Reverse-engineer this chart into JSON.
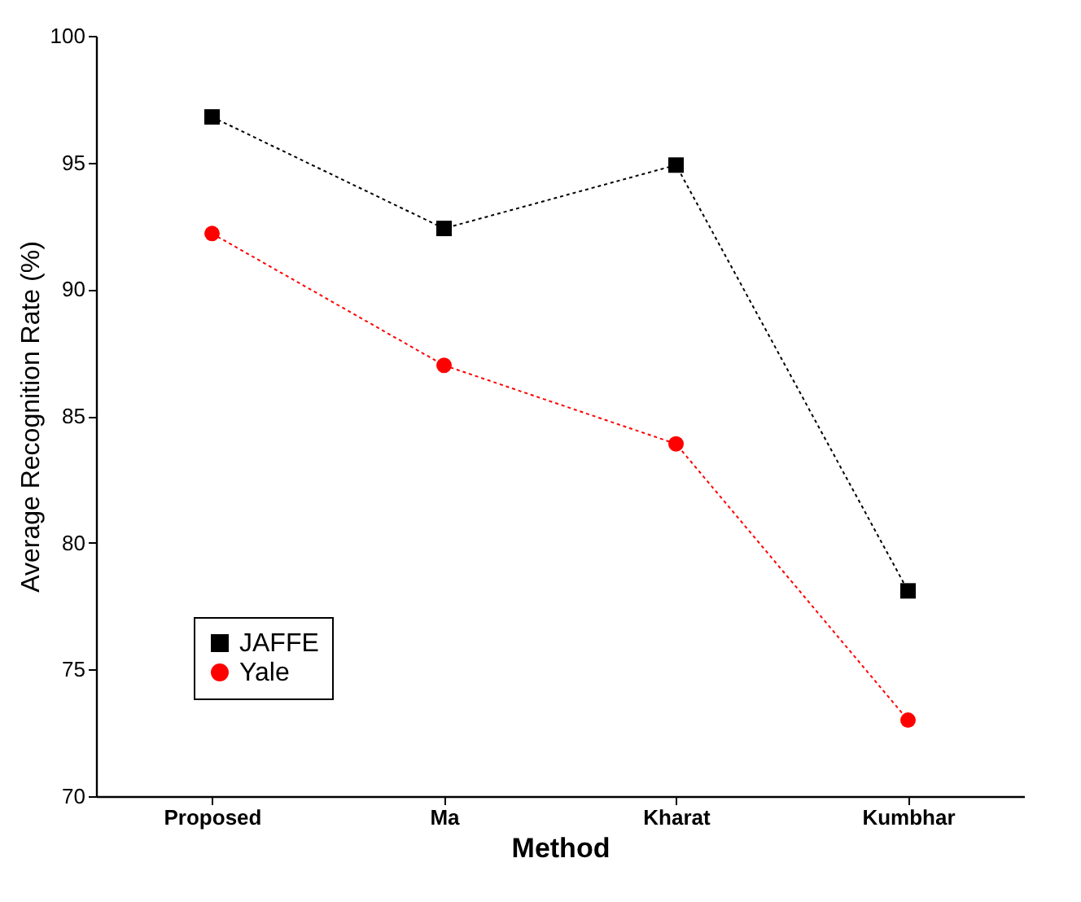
{
  "chart_data": {
    "type": "line",
    "xlabel": "Method",
    "ylabel": "Average Recognition Rate (%)",
    "categories": [
      "Proposed",
      "Ma",
      "Kharat",
      "Kumbhar"
    ],
    "series": [
      {
        "name": "JAFFE",
        "color": "#000000",
        "marker": "square",
        "values": [
          96.8,
          92.4,
          94.9,
          78.1
        ]
      },
      {
        "name": "Yale",
        "color": "#ff0000",
        "marker": "circle",
        "values": [
          92.2,
          87.0,
          83.9,
          73.0
        ]
      }
    ],
    "ylim": [
      70,
      100
    ],
    "yticks": [
      70,
      75,
      80,
      85,
      90,
      95,
      100
    ],
    "grid": false,
    "legend": "bottom left",
    "line_style": "dotted"
  }
}
